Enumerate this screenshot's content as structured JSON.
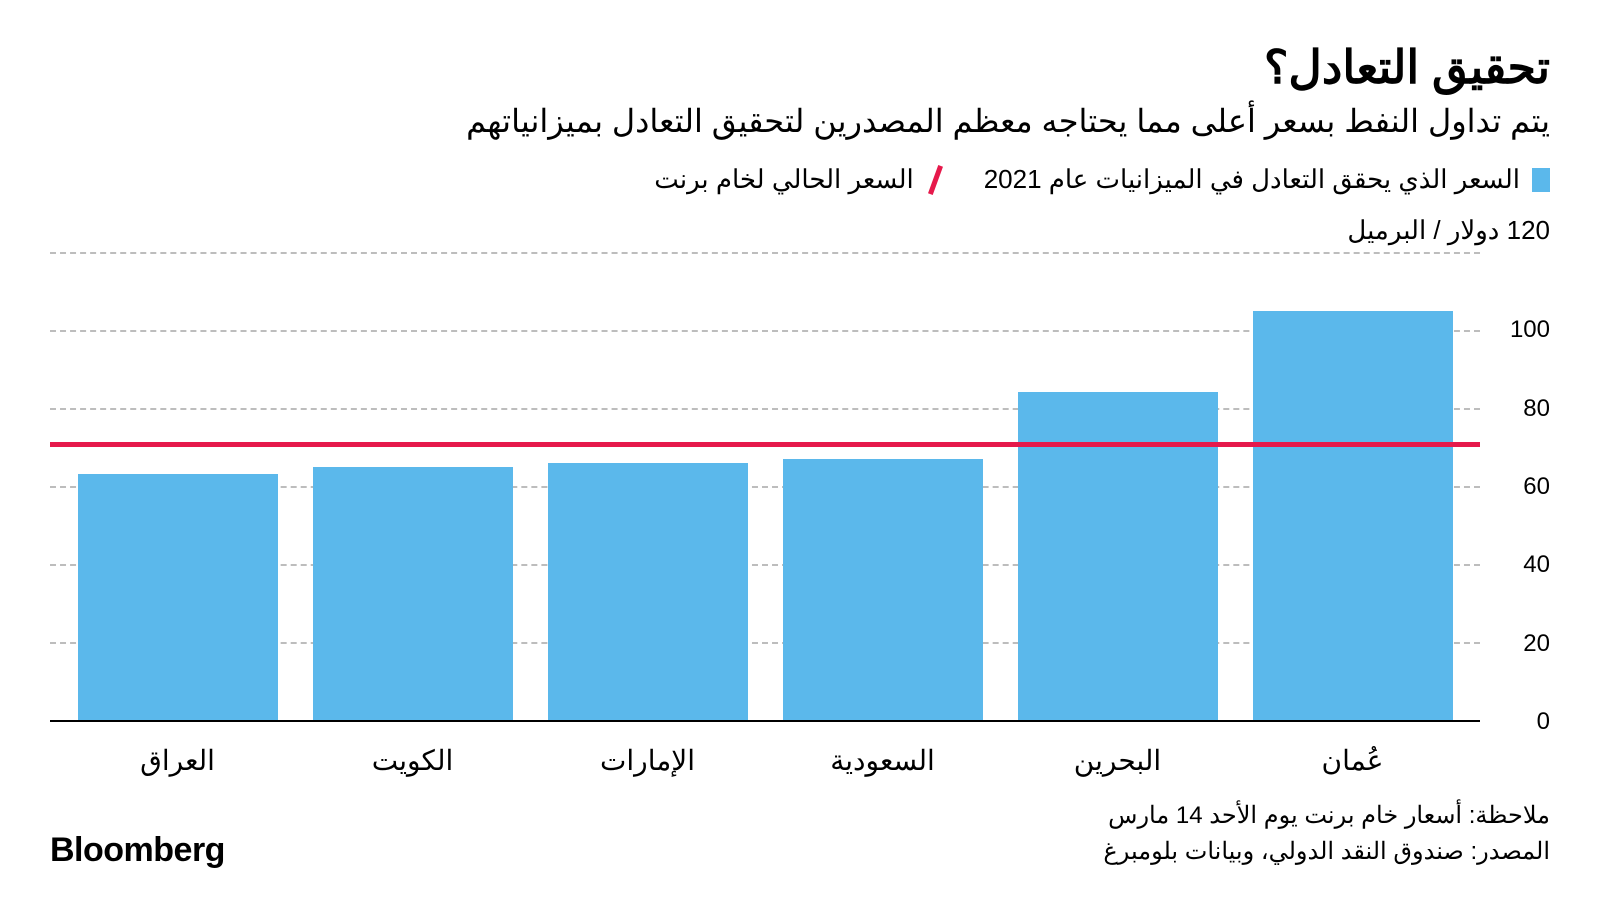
{
  "title": "تحقيق التعادل؟",
  "subtitle": "يتم تداول النفط بسعر أعلى مما يحتاجه معظم المصدرين لتحقيق التعادل بميزانياتهم",
  "legend": {
    "bar_label": "السعر الذي يحقق التعادل في الميزانيات عام 2021",
    "line_label": "السعر الحالي لخام برنت"
  },
  "unit_label": "120 دولار / البرميل",
  "chart": {
    "type": "bar",
    "categories": [
      "عُمان",
      "البحرين",
      "السعودية",
      "الإمارات",
      "الكويت",
      "العراق"
    ],
    "values": [
      105,
      84,
      67,
      66,
      65,
      63
    ],
    "bar_color": "#5bb8eb",
    "reference_line_value": 70,
    "reference_line_color": "#e6194b",
    "ylim": [
      0,
      120
    ],
    "ytick_step": 20,
    "ytick_labels": [
      "0",
      "20",
      "40",
      "60",
      "80",
      "100"
    ],
    "grid_color": "#bdbdbd",
    "background_color": "#ffffff",
    "baseline_color": "#000000"
  },
  "footer": {
    "note": "ملاحظة: أسعار خام برنت يوم الأحد 14 مارس",
    "source": "المصدر: صندوق النقد الدولي، وبيانات بلومبرغ"
  },
  "logo": "Bloomberg"
}
